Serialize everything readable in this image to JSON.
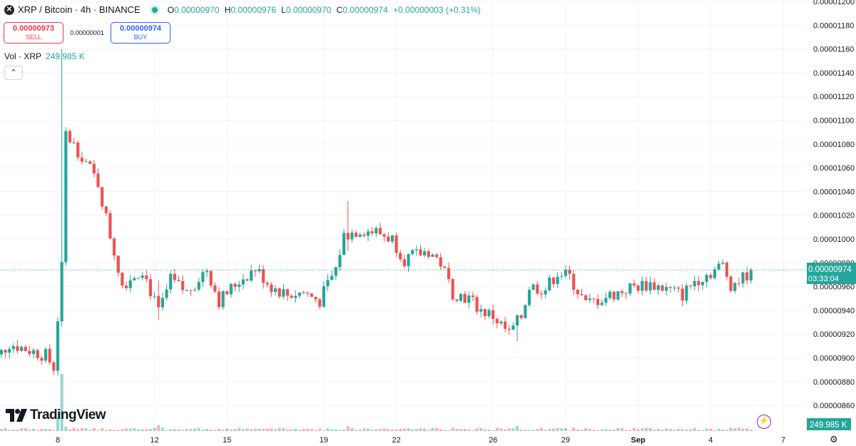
{
  "header": {
    "symbol_icon": "x-logo-icon",
    "title": "XRP / Bitcoin · 4h · BINANCE",
    "ohlc": {
      "o_label": "O",
      "o": "0.00000970",
      "h_label": "H",
      "h": "0.00000976",
      "l_label": "L",
      "l": "0.00000970",
      "c_label": "C",
      "c": "0.00000974",
      "change": "+0.00000003 (+0.31%)"
    }
  },
  "trade": {
    "sell_price": "0.00000973",
    "sell_label": "SELL",
    "spread": "0.00000001",
    "buy_price": "0.00000974",
    "buy_label": "BUY"
  },
  "volume_legend": {
    "label": "Vol · XRP",
    "value": "249.985 K"
  },
  "logo_text": "TradingView",
  "colors": {
    "up": "#26a69a",
    "down": "#ef5350",
    "grid": "#f0f3fa",
    "text": "#131722"
  },
  "chart_data": {
    "type": "candlestick",
    "y_ticks": [
      "0.00001200",
      "0.00001180",
      "0.00001160",
      "0.00001140",
      "0.00001120",
      "0.00001100",
      "0.00001080",
      "0.00001060",
      "0.00001040",
      "0.00001020",
      "0.00001000",
      "0.00000980",
      "0.00000960",
      "0.00000940",
      "0.00000920",
      "0.00000900",
      "0.00000880",
      "0.00000860"
    ],
    "x_ticks": [
      "8",
      "12",
      "15",
      "19",
      "22",
      "26",
      "29",
      "Sep",
      "4",
      "7"
    ],
    "last_price": "0.00000974",
    "countdown": "03:33:04",
    "volume_last": "249.985 K",
    "keypoints": [
      {
        "x": "Aug 5 00:00",
        "close": 8.9e-06
      },
      {
        "x": "Aug 6 00:00",
        "close": 9.12e-06
      },
      {
        "x": "Aug 7 12:00",
        "close": 9.02e-06
      },
      {
        "x": "Aug 7 20:00",
        "close": 8.92e-06
      },
      {
        "x": "Aug 8 04:00",
        "close": 9.75e-06
      },
      {
        "x": "Aug 8 08:00",
        "close": 1.088e-05
      },
      {
        "x": "Aug 9 00:00",
        "close": 1.07e-05
      },
      {
        "x": "Aug 9 16:00",
        "close": 1.047e-05
      },
      {
        "x": "Aug 10 04:00",
        "close": 1.003e-05
      },
      {
        "x": "Aug 10 16:00",
        "close": 9.62e-06
      },
      {
        "x": "Aug 11 12:00",
        "close": 9.75e-06
      },
      {
        "x": "Aug 12 04:00",
        "close": 9.38e-06
      },
      {
        "x": "Aug 12 16:00",
        "close": 9.65e-06
      },
      {
        "x": "Aug 13 08:00",
        "close": 9.55e-06
      },
      {
        "x": "Aug 14 04:00",
        "close": 9.75e-06
      },
      {
        "x": "Aug 14 16:00",
        "close": 9.48e-06
      },
      {
        "x": "Aug 15 12:00",
        "close": 9.65e-06
      },
      {
        "x": "Aug 16 04:00",
        "close": 9.75e-06
      },
      {
        "x": "Aug 16 20:00",
        "close": 9.6e-06
      },
      {
        "x": "Aug 17 12:00",
        "close": 9.53e-06
      },
      {
        "x": "Aug 18 04:00",
        "close": 9.55e-06
      },
      {
        "x": "Aug 18 20:00",
        "close": 9.48e-06
      },
      {
        "x": "Aug 19 12:00",
        "close": 9.75e-06
      },
      {
        "x": "Aug 19 20:00",
        "close": 1.003e-05
      },
      {
        "x": "Aug 20 12:00",
        "close": 1.008e-05
      },
      {
        "x": "Aug 21 04:00",
        "close": 1.006e-05
      },
      {
        "x": "Aug 21 20:00",
        "close": 1e-05
      },
      {
        "x": "Aug 22 08:00",
        "close": 9.83e-06
      },
      {
        "x": "Aug 23 08:00",
        "close": 9.9e-06
      },
      {
        "x": "Aug 23 20:00",
        "close": 9.8e-06
      },
      {
        "x": "Aug 24 08:00",
        "close": 9.55e-06
      },
      {
        "x": "Aug 25 00:00",
        "close": 9.5e-06
      },
      {
        "x": "Aug 25 12:00",
        "close": 9.4e-06
      },
      {
        "x": "Aug 26 00:00",
        "close": 9.35e-06
      },
      {
        "x": "Aug 26 16:00",
        "close": 9.2e-06
      },
      {
        "x": "Aug 27 04:00",
        "close": 9.35e-06
      },
      {
        "x": "Aug 27 12:00",
        "close": 9.6e-06
      },
      {
        "x": "Aug 28 04:00",
        "close": 9.58e-06
      },
      {
        "x": "Aug 28 16:00",
        "close": 9.72e-06
      },
      {
        "x": "Aug 29 04:00",
        "close": 9.68e-06
      },
      {
        "x": "Aug 29 20:00",
        "close": 9.45e-06
      },
      {
        "x": "Aug 30 12:00",
        "close": 9.5e-06
      },
      {
        "x": "Aug 31 04:00",
        "close": 9.55e-06
      },
      {
        "x": "Aug 31 20:00",
        "close": 9.6e-06
      },
      {
        "x": "Sep 1 12:00",
        "close": 9.62e-06
      },
      {
        "x": "Sep 2 04:00",
        "close": 9.58e-06
      },
      {
        "x": "Sep 2 20:00",
        "close": 9.53e-06
      },
      {
        "x": "Sep 3 08:00",
        "close": 9.65e-06
      },
      {
        "x": "Sep 4 00:00",
        "close": 9.72e-06
      },
      {
        "x": "Sep 4 12:00",
        "close": 9.78e-06
      },
      {
        "x": "Sep 4 20:00",
        "close": 9.62e-06
      },
      {
        "x": "Sep 5 08:00",
        "close": 9.67e-06
      },
      {
        "x": "Sep 5 16:00",
        "close": 9.74e-06
      }
    ],
    "spikes": [
      {
        "x": "Aug 8 04:00",
        "high": 1.16e-05,
        "low": 9.35e-06
      },
      {
        "x": "Aug 8 08:00",
        "high": 1.093e-05,
        "low": 1.05e-05
      },
      {
        "x": "Aug 12 04:00",
        "high": 9.65e-06,
        "low": 9.32e-06
      },
      {
        "x": "Aug 20 00:00",
        "high": 1.032e-05,
        "low": 9.9e-06
      },
      {
        "x": "Aug 27 00:00",
        "high": 9.35e-06,
        "low": 9.14e-06
      }
    ],
    "volume_spikes": [
      {
        "x": "Aug 8 00:00",
        "value": 249985
      },
      {
        "x": "Aug 8 04:00",
        "value": 1050000
      }
    ]
  }
}
